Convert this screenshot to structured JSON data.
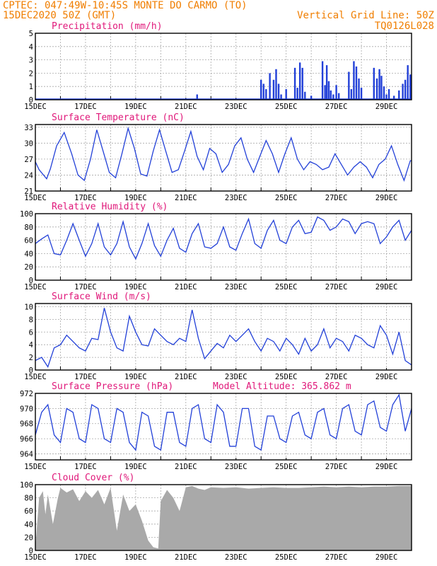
{
  "header": {
    "line1": "CPTEC:  047:49W-10:45S  MONTE DO CARMO (TO)",
    "line2_left": "15DEC2020 50Z (GMT)",
    "line2_right": "Vertical Grid Line: 50Z",
    "line3_right": "TQ0126L028"
  },
  "colors": {
    "series": "#2240d8",
    "title": "#e0187a",
    "header": "#f07e00",
    "bars": "#2240d8",
    "cloud": "#a9a9a9"
  },
  "x_axis": {
    "tick_labels": [
      "15DEC",
      "17DEC",
      "19DEC",
      "21DEC",
      "23DEC",
      "25DEC",
      "27DEC",
      "29DEC"
    ],
    "start_day": 15,
    "end_day": 30
  },
  "chart_data": [
    {
      "type": "bar",
      "title": "Precipitation (mm/h)",
      "ylim": [
        0,
        5
      ],
      "yticks": [
        0,
        1,
        2,
        3,
        4,
        5
      ],
      "x": [
        21.45,
        24.0,
        24.1,
        24.2,
        24.35,
        24.5,
        24.6,
        24.7,
        24.8,
        25.0,
        25.35,
        25.45,
        25.55,
        25.65,
        25.75,
        26.0,
        26.45,
        26.55,
        26.62,
        26.7,
        26.78,
        26.88,
        27.0,
        27.1,
        27.5,
        27.6,
        27.7,
        27.8,
        27.9,
        28.0,
        28.5,
        28.62,
        28.72,
        28.8,
        28.9,
        29.0,
        29.1,
        29.3,
        29.5,
        29.65,
        29.75,
        29.85,
        29.95
      ],
      "values": [
        0.4,
        1.5,
        1.2,
        0.8,
        2.0,
        1.5,
        2.3,
        1.2,
        0.4,
        0.8,
        2.4,
        0.9,
        2.8,
        2.4,
        0.6,
        0.3,
        2.9,
        1.1,
        2.6,
        1.4,
        0.7,
        0.4,
        1.1,
        0.5,
        2.1,
        0.8,
        2.9,
        2.5,
        1.6,
        0.9,
        2.4,
        1.6,
        2.3,
        1.8,
        1.0,
        0.4,
        0.8,
        0.3,
        0.7,
        1.2,
        1.5,
        2.6,
        1.9
      ]
    },
    {
      "type": "line",
      "title": "Surface Temperature (nC)",
      "ylim": [
        21,
        33.5
      ],
      "yticks": [
        21,
        24,
        27,
        30,
        33
      ],
      "x": [
        15.0,
        15.15,
        15.45,
        15.6,
        15.85,
        16.15,
        16.45,
        16.7,
        16.95,
        17.2,
        17.45,
        17.7,
        17.95,
        18.2,
        18.45,
        18.7,
        18.95,
        19.2,
        19.45,
        19.7,
        19.95,
        20.2,
        20.45,
        20.7,
        20.95,
        21.2,
        21.45,
        21.7,
        21.95,
        22.2,
        22.45,
        22.7,
        22.95,
        23.2,
        23.45,
        23.7,
        23.95,
        24.2,
        24.45,
        24.7,
        24.95,
        25.2,
        25.45,
        25.7,
        25.95,
        26.2,
        26.45,
        26.7,
        26.95,
        27.2,
        27.45,
        27.7,
        27.95,
        28.2,
        28.45,
        28.7,
        28.95,
        29.2,
        29.45,
        29.7,
        29.95,
        30.0
      ],
      "values": [
        26.5,
        25.0,
        23.3,
        25.2,
        29.5,
        32.0,
        28.0,
        24.0,
        23.0,
        27.0,
        32.5,
        28.5,
        24.5,
        23.5,
        28.0,
        32.8,
        29.0,
        24.2,
        23.8,
        28.5,
        32.5,
        28.5,
        24.5,
        25.0,
        28.5,
        32.2,
        27.5,
        25.0,
        29.0,
        28.0,
        24.5,
        26.0,
        29.5,
        31.0,
        27.0,
        24.5,
        27.5,
        30.5,
        28.0,
        24.5,
        28.0,
        31.0,
        27.0,
        25.0,
        26.5,
        26.0,
        25.0,
        25.5,
        28.0,
        26.0,
        24.0,
        25.5,
        26.5,
        25.5,
        23.5,
        26.0,
        27.0,
        29.5,
        26.0,
        23.0,
        26.7,
        26.7
      ]
    },
    {
      "type": "line",
      "title": "Relative Humidity (%)",
      "ylim": [
        0,
        100
      ],
      "yticks": [
        0,
        20,
        40,
        60,
        80,
        100
      ],
      "x": [
        15.0,
        15.25,
        15.5,
        15.75,
        16.0,
        16.25,
        16.5,
        16.75,
        17.0,
        17.25,
        17.5,
        17.75,
        18.0,
        18.25,
        18.5,
        18.75,
        19.0,
        19.25,
        19.5,
        19.75,
        20.0,
        20.25,
        20.5,
        20.75,
        21.0,
        21.25,
        21.5,
        21.75,
        22.0,
        22.25,
        22.5,
        22.75,
        23.0,
        23.25,
        23.5,
        23.75,
        24.0,
        24.25,
        24.5,
        24.75,
        25.0,
        25.25,
        25.5,
        25.75,
        26.0,
        26.25,
        26.5,
        26.75,
        27.0,
        27.25,
        27.5,
        27.75,
        28.0,
        28.25,
        28.5,
        28.75,
        29.0,
        29.25,
        29.5,
        29.75,
        30.0
      ],
      "values": [
        55,
        62,
        68,
        40,
        38,
        60,
        85,
        60,
        36,
        55,
        85,
        50,
        38,
        55,
        88,
        50,
        32,
        55,
        85,
        52,
        36,
        60,
        78,
        48,
        42,
        70,
        85,
        50,
        48,
        55,
        80,
        50,
        45,
        70,
        92,
        55,
        48,
        75,
        90,
        60,
        55,
        80,
        90,
        70,
        72,
        95,
        90,
        75,
        80,
        92,
        88,
        70,
        85,
        88,
        85,
        55,
        65,
        80,
        90,
        60,
        75
      ]
    },
    {
      "type": "line",
      "title": "Surface Wind (m/s)",
      "ylim": [
        0,
        10.5
      ],
      "yticks": [
        0,
        2,
        4,
        6,
        8,
        10
      ],
      "x": [
        15.0,
        15.25,
        15.5,
        15.75,
        16.0,
        16.25,
        16.5,
        16.75,
        17.0,
        17.25,
        17.5,
        17.75,
        18.0,
        18.25,
        18.5,
        18.75,
        19.0,
        19.25,
        19.5,
        19.75,
        20.0,
        20.25,
        20.5,
        20.75,
        21.0,
        21.25,
        21.5,
        21.75,
        22.0,
        22.25,
        22.5,
        22.75,
        23.0,
        23.25,
        23.5,
        23.75,
        24.0,
        24.25,
        24.5,
        24.75,
        25.0,
        25.25,
        25.5,
        25.75,
        26.0,
        26.25,
        26.5,
        26.75,
        27.0,
        27.25,
        27.5,
        27.75,
        28.0,
        28.25,
        28.5,
        28.75,
        29.0,
        29.25,
        29.5,
        29.75,
        30.0
      ],
      "values": [
        1.5,
        2.0,
        0.5,
        3.5,
        4.0,
        5.5,
        4.5,
        3.5,
        3.0,
        5.0,
        4.8,
        9.8,
        6.0,
        3.5,
        3.0,
        8.5,
        6.0,
        4.0,
        3.8,
        6.5,
        5.5,
        4.5,
        4.0,
        5.0,
        4.5,
        9.5,
        5.0,
        1.8,
        3.0,
        4.2,
        3.5,
        5.5,
        4.5,
        5.5,
        6.5,
        4.5,
        3.0,
        5.0,
        4.5,
        3.0,
        5.0,
        4.0,
        2.5,
        5.0,
        3.0,
        4.0,
        6.5,
        3.5,
        5.0,
        4.5,
        3.0,
        5.5,
        5.0,
        4.0,
        3.5,
        7.0,
        5.5,
        2.5,
        6.0,
        1.5,
        0.8
      ]
    },
    {
      "type": "line",
      "title": "Surface Pressure (hPa)",
      "annotation": "Model Altitude: 365.862 m",
      "ylim": [
        963.2,
        972
      ],
      "yticks": [
        964,
        966,
        968,
        970,
        972
      ],
      "x": [
        15.0,
        15.25,
        15.5,
        15.75,
        16.0,
        16.25,
        16.5,
        16.75,
        17.0,
        17.25,
        17.5,
        17.75,
        18.0,
        18.25,
        18.5,
        18.75,
        19.0,
        19.25,
        19.5,
        19.75,
        20.0,
        20.25,
        20.5,
        20.75,
        21.0,
        21.25,
        21.5,
        21.75,
        22.0,
        22.25,
        22.5,
        22.75,
        23.0,
        23.25,
        23.5,
        23.75,
        24.0,
        24.25,
        24.5,
        24.75,
        25.0,
        25.25,
        25.5,
        25.75,
        26.0,
        26.25,
        26.5,
        26.75,
        27.0,
        27.25,
        27.5,
        27.75,
        28.0,
        28.25,
        28.5,
        28.75,
        29.0,
        29.25,
        29.5,
        29.75,
        30.0
      ],
      "values": [
        966.5,
        969.5,
        970.5,
        966.5,
        965.5,
        970.0,
        969.5,
        966.0,
        965.5,
        970.5,
        970.0,
        966.0,
        965.5,
        970.0,
        969.5,
        965.5,
        964.5,
        969.5,
        969.0,
        965.0,
        964.5,
        969.5,
        969.5,
        965.5,
        965.0,
        970.0,
        970.5,
        966.0,
        965.5,
        970.5,
        969.5,
        965.0,
        965.0,
        970.0,
        970.0,
        965.0,
        964.5,
        969.0,
        969.0,
        966.0,
        965.5,
        969.0,
        969.5,
        966.5,
        966.0,
        969.5,
        970.0,
        966.5,
        966.0,
        970.0,
        970.5,
        967.0,
        966.5,
        970.5,
        971.0,
        967.5,
        967.0,
        970.5,
        971.8,
        967.0,
        970.0
      ]
    },
    {
      "type": "area",
      "title": "Cloud Cover (%)",
      "ylim": [
        0,
        100
      ],
      "yticks": [
        0,
        20,
        40,
        60,
        80,
        100
      ],
      "x": [
        15.0,
        15.15,
        15.3,
        15.4,
        15.5,
        15.7,
        15.9,
        16.0,
        16.25,
        16.5,
        16.75,
        17.0,
        17.25,
        17.5,
        17.75,
        18.0,
        18.25,
        18.5,
        18.75,
        19.0,
        19.25,
        19.5,
        19.7,
        19.9,
        20.0,
        20.25,
        20.5,
        20.75,
        21.0,
        21.25,
        21.5,
        21.75,
        22.0,
        22.5,
        23.0,
        23.5,
        24.0,
        24.5,
        25.0,
        25.5,
        26.0,
        26.5,
        27.0,
        27.5,
        28.0,
        28.5,
        29.0,
        29.5,
        30.0
      ],
      "values": [
        5,
        80,
        90,
        55,
        85,
        40,
        80,
        95,
        88,
        93,
        75,
        90,
        80,
        92,
        70,
        95,
        30,
        85,
        60,
        70,
        45,
        15,
        5,
        3,
        75,
        92,
        80,
        60,
        96,
        98,
        94,
        92,
        96,
        95,
        96,
        94,
        95,
        96,
        95,
        95,
        96,
        97,
        96,
        97,
        96,
        97,
        97,
        98,
        98
      ]
    }
  ]
}
